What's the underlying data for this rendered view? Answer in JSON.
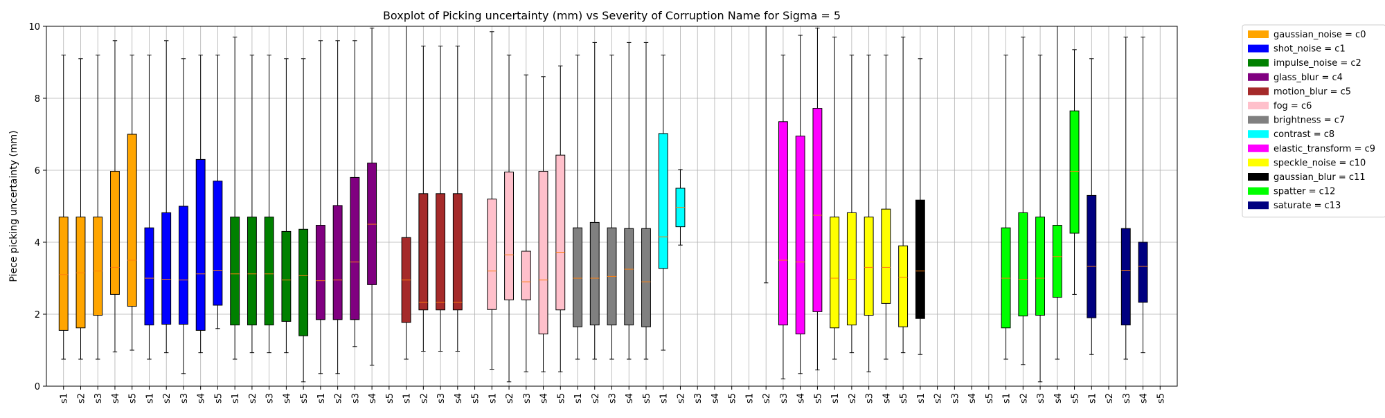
{
  "chart_data": {
    "type": "box",
    "title": "Boxplot of Picking uncertainty (mm) vs Severity of Corruption Name for Sigma = 5",
    "xlabel": "",
    "ylabel": "Piece picking uncertainty (mm)",
    "ylim": [
      0,
      10
    ],
    "yticks": [
      0,
      2,
      4,
      6,
      8,
      10
    ],
    "grid": true,
    "legend_position": "outside-right",
    "median_color": "#ff7f0e",
    "series": [
      {
        "label": "gaussian_noise = c0",
        "color": "#ffa500",
        "boxes": [
          {
            "cat": "s1",
            "min": 0.75,
            "q1": 1.55,
            "median": 3.1,
            "q3": 4.7,
            "max": 9.2
          },
          {
            "cat": "s2",
            "min": 0.75,
            "q1": 1.62,
            "median": 3.15,
            "q3": 4.7,
            "max": 9.1
          },
          {
            "cat": "s3",
            "min": 0.75,
            "q1": 1.97,
            "median": 3.2,
            "q3": 4.7,
            "max": 9.2
          },
          {
            "cat": "s4",
            "min": 0.95,
            "q1": 2.55,
            "median": 3.3,
            "q3": 5.97,
            "max": 9.6
          },
          {
            "cat": "s5",
            "min": 1.0,
            "q1": 2.22,
            "median": 3.5,
            "q3": 7.0,
            "max": 9.2
          }
        ]
      },
      {
        "label": "shot_noise = c1",
        "color": "#0000ff",
        "boxes": [
          {
            "cat": "s1",
            "min": 0.75,
            "q1": 1.7,
            "median": 3.0,
            "q3": 4.4,
            "max": 9.2
          },
          {
            "cat": "s2",
            "min": 0.93,
            "q1": 1.72,
            "median": 2.97,
            "q3": 4.82,
            "max": 9.6
          },
          {
            "cat": "s3",
            "min": 0.35,
            "q1": 1.72,
            "median": 2.95,
            "q3": 5.0,
            "max": 9.1
          },
          {
            "cat": "s4",
            "min": 0.93,
            "q1": 1.55,
            "median": 3.12,
            "q3": 6.3,
            "max": 9.2
          },
          {
            "cat": "s5",
            "min": 1.6,
            "q1": 2.25,
            "median": 3.22,
            "q3": 5.7,
            "max": 9.2
          }
        ]
      },
      {
        "label": "impulse_noise = c2",
        "color": "#008000",
        "boxes": [
          {
            "cat": "s1",
            "min": 0.75,
            "q1": 1.7,
            "median": 3.12,
            "q3": 4.7,
            "max": 9.7
          },
          {
            "cat": "s2",
            "min": 0.93,
            "q1": 1.7,
            "median": 3.12,
            "q3": 4.7,
            "max": 9.2
          },
          {
            "cat": "s3",
            "min": 0.93,
            "q1": 1.7,
            "median": 3.12,
            "q3": 4.7,
            "max": 9.2
          },
          {
            "cat": "s4",
            "min": 0.93,
            "q1": 1.8,
            "median": 2.95,
            "q3": 4.3,
            "max": 9.1
          },
          {
            "cat": "s5",
            "min": 0.12,
            "q1": 1.4,
            "median": 3.07,
            "q3": 4.36,
            "max": 9.1
          }
        ]
      },
      {
        "label": "glass_blur = c4",
        "color": "#800080",
        "boxes": [
          {
            "cat": "s1",
            "min": 0.35,
            "q1": 1.85,
            "median": 2.93,
            "q3": 4.47,
            "max": 9.6
          },
          {
            "cat": "s2",
            "min": 0.35,
            "q1": 1.85,
            "median": 2.95,
            "q3": 5.02,
            "max": 9.6
          },
          {
            "cat": "s3",
            "min": 1.1,
            "q1": 1.85,
            "median": 3.45,
            "q3": 5.8,
            "max": 9.6
          },
          {
            "cat": "s4",
            "min": 0.58,
            "q1": 2.82,
            "median": 4.5,
            "q3": 6.2,
            "max": 9.95
          },
          {
            "cat": "s5",
            "min": null,
            "q1": null,
            "median": null,
            "q3": null,
            "max": null
          }
        ]
      },
      {
        "label": "motion_blur = c5",
        "color": "#a52a2a",
        "boxes": [
          {
            "cat": "s1",
            "min": 0.75,
            "q1": 1.77,
            "median": 2.95,
            "q3": 4.13,
            "max": 10.0
          },
          {
            "cat": "s2",
            "min": 0.97,
            "q1": 2.12,
            "median": 2.33,
            "q3": 5.35,
            "max": 9.45
          },
          {
            "cat": "s3",
            "min": 0.97,
            "q1": 2.12,
            "median": 2.33,
            "q3": 5.35,
            "max": 9.45
          },
          {
            "cat": "s4",
            "min": 0.97,
            "q1": 2.12,
            "median": 2.33,
            "q3": 5.35,
            "max": 9.45
          },
          {
            "cat": "s5",
            "min": null,
            "q1": null,
            "median": null,
            "q3": null,
            "max": null
          }
        ]
      },
      {
        "label": "fog = c6",
        "color": "#ffc0cb",
        "boxes": [
          {
            "cat": "s1",
            "min": 0.47,
            "q1": 2.13,
            "median": 3.2,
            "q3": 5.2,
            "max": 9.85
          },
          {
            "cat": "s2",
            "min": 0.12,
            "q1": 2.4,
            "median": 3.65,
            "q3": 5.95,
            "max": 9.2
          },
          {
            "cat": "s3",
            "min": 0.4,
            "q1": 2.4,
            "median": 2.9,
            "q3": 3.75,
            "max": 8.65
          },
          {
            "cat": "s4",
            "min": 0.4,
            "q1": 1.45,
            "median": 2.95,
            "q3": 5.97,
            "max": 8.6
          },
          {
            "cat": "s5",
            "min": 0.4,
            "q1": 2.12,
            "median": 3.72,
            "q3": 6.42,
            "max": 8.9
          }
        ]
      },
      {
        "label": "brightness = c7",
        "color": "#808080",
        "boxes": [
          {
            "cat": "s1",
            "min": 0.75,
            "q1": 1.65,
            "median": 3.0,
            "q3": 4.4,
            "max": 9.2
          },
          {
            "cat": "s2",
            "min": 0.75,
            "q1": 1.7,
            "median": 3.0,
            "q3": 4.55,
            "max": 9.55
          },
          {
            "cat": "s3",
            "min": 0.75,
            "q1": 1.7,
            "median": 3.05,
            "q3": 4.4,
            "max": 9.2
          },
          {
            "cat": "s4",
            "min": 0.75,
            "q1": 1.7,
            "median": 3.25,
            "q3": 4.38,
            "max": 9.55
          },
          {
            "cat": "s5",
            "min": 0.75,
            "q1": 1.65,
            "median": 2.9,
            "q3": 4.38,
            "max": 9.55
          }
        ]
      },
      {
        "label": "contrast = c8",
        "color": "#00ffff",
        "boxes": [
          {
            "cat": "s1",
            "min": 1.0,
            "q1": 3.27,
            "median": 4.15,
            "q3": 7.02,
            "max": 9.2
          },
          {
            "cat": "s2",
            "min": 3.92,
            "q1": 4.43,
            "median": 4.97,
            "q3": 5.5,
            "max": 6.02
          },
          {
            "cat": "s3",
            "min": null,
            "q1": null,
            "median": null,
            "q3": null,
            "max": null
          },
          {
            "cat": "s4",
            "min": null,
            "q1": null,
            "median": null,
            "q3": null,
            "max": null
          },
          {
            "cat": "s5",
            "min": null,
            "q1": null,
            "median": null,
            "q3": null,
            "max": null
          }
        ]
      },
      {
        "label": "elastic_transform = c9",
        "color": "#ff00ff",
        "boxes": [
          {
            "cat": "s1",
            "min": null,
            "q1": null,
            "median": null,
            "q3": null,
            "max": null
          },
          {
            "cat": "s2",
            "min": 2.87,
            "q1": 10.0,
            "median": 10.0,
            "q3": 10.0,
            "max": 10.0
          },
          {
            "cat": "s3",
            "min": 0.2,
            "q1": 1.7,
            "median": 3.5,
            "q3": 7.35,
            "max": 9.2
          },
          {
            "cat": "s4",
            "min": 0.35,
            "q1": 1.45,
            "median": 3.45,
            "q3": 6.95,
            "max": 9.75
          },
          {
            "cat": "s5",
            "min": 0.45,
            "q1": 2.07,
            "median": 4.75,
            "q3": 7.72,
            "max": 9.95
          }
        ]
      },
      {
        "label": "speckle_noise = c10",
        "color": "#ffff00",
        "boxes": [
          {
            "cat": "s1",
            "min": 0.75,
            "q1": 1.62,
            "median": 3.0,
            "q3": 4.7,
            "max": 9.7
          },
          {
            "cat": "s2",
            "min": 0.93,
            "q1": 1.7,
            "median": 2.97,
            "q3": 4.82,
            "max": 9.2
          },
          {
            "cat": "s3",
            "min": 0.4,
            "q1": 1.97,
            "median": 3.3,
            "q3": 4.7,
            "max": 9.2
          },
          {
            "cat": "s4",
            "min": 0.75,
            "q1": 2.3,
            "median": 3.3,
            "q3": 4.92,
            "max": 9.2
          },
          {
            "cat": "s5",
            "min": 0.93,
            "q1": 1.65,
            "median": 3.03,
            "q3": 3.9,
            "max": 9.7
          }
        ]
      },
      {
        "label": "gaussian_blur = c11",
        "color": "#000000",
        "boxes": [
          {
            "cat": "s1",
            "min": 0.88,
            "q1": 1.88,
            "median": 3.2,
            "q3": 5.17,
            "max": 9.1
          },
          {
            "cat": "s2",
            "min": null,
            "q1": null,
            "median": null,
            "q3": null,
            "max": null
          },
          {
            "cat": "s3",
            "min": null,
            "q1": null,
            "median": null,
            "q3": null,
            "max": null
          },
          {
            "cat": "s4",
            "min": null,
            "q1": null,
            "median": null,
            "q3": null,
            "max": null
          },
          {
            "cat": "s5",
            "min": null,
            "q1": null,
            "median": null,
            "q3": null,
            "max": null
          }
        ]
      },
      {
        "label": "spatter = c12",
        "color": "#00ff00",
        "boxes": [
          {
            "cat": "s1",
            "min": 0.75,
            "q1": 1.62,
            "median": 3.0,
            "q3": 4.4,
            "max": 9.2
          },
          {
            "cat": "s2",
            "min": 0.6,
            "q1": 1.95,
            "median": 2.97,
            "q3": 4.82,
            "max": 9.7
          },
          {
            "cat": "s3",
            "min": 0.12,
            "q1": 1.97,
            "median": 3.0,
            "q3": 4.7,
            "max": 9.2
          },
          {
            "cat": "s4",
            "min": 0.75,
            "q1": 2.47,
            "median": 3.6,
            "q3": 4.47,
            "max": 10.0
          },
          {
            "cat": "s5",
            "min": 2.55,
            "q1": 4.25,
            "median": 5.97,
            "q3": 7.65,
            "max": 9.35
          }
        ]
      },
      {
        "label": "saturate = c13",
        "color": "#000080",
        "boxes": [
          {
            "cat": "s1",
            "min": 0.88,
            "q1": 1.9,
            "median": 3.33,
            "q3": 5.3,
            "max": 9.1
          },
          {
            "cat": "s2",
            "min": null,
            "q1": null,
            "median": null,
            "q3": null,
            "max": null
          },
          {
            "cat": "s3",
            "min": 0.75,
            "q1": 1.7,
            "median": 3.22,
            "q3": 4.38,
            "max": 9.7
          },
          {
            "cat": "s4",
            "min": 0.93,
            "q1": 2.33,
            "median": 3.33,
            "q3": 4.0,
            "max": 9.7
          },
          {
            "cat": "s5",
            "min": null,
            "q1": null,
            "median": null,
            "q3": null,
            "max": null
          }
        ]
      }
    ]
  }
}
